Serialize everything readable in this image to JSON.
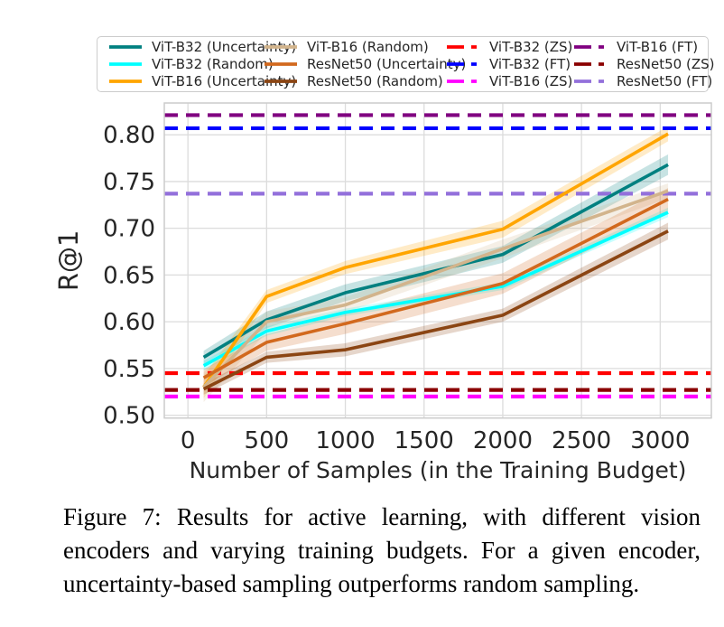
{
  "figure": {
    "caption": {
      "lines": [
        "Figure 7: Results for active learning, with different vision",
        "encoders and varying training budgets. For a given encoder,",
        "uncertainty-based sampling outperforms random sampling."
      ]
    }
  },
  "chart_data": {
    "type": "line",
    "title": "",
    "xlabel": "Number of Samples (in the Training Budget)",
    "ylabel": "R@1",
    "x": [
      100,
      500,
      1000,
      2000,
      3050
    ],
    "xlim": [
      -150,
      3325
    ],
    "ylim": [
      0.497,
      0.834
    ],
    "xticks": [
      0,
      500,
      1000,
      1500,
      2000,
      2500,
      3000
    ],
    "yticks": [
      0.5,
      0.55,
      0.6,
      0.65,
      0.7,
      0.75,
      0.8
    ],
    "grid": true,
    "grid_color": "#dcdcdc",
    "spine_color": "#cccccc",
    "tick_color": "#262626",
    "series": [
      {
        "name": "ViT-B32 (Uncertainty)",
        "color": "#008080",
        "values": [
          0.562,
          0.602,
          0.631,
          0.672,
          0.768
        ],
        "ci_halfwidth": [
          0.007,
          0.009,
          0.009,
          0.009,
          0.011
        ]
      },
      {
        "name": "ViT-B32 (Random)",
        "color": "#00FFFF",
        "values": [
          0.553,
          0.59,
          0.61,
          0.638,
          0.717
        ],
        "ci_halfwidth": [
          0.005,
          0.005,
          0.004,
          0.004,
          0.005
        ]
      },
      {
        "name": "ViT-B16 (Uncertainty)",
        "color": "#FFA500",
        "values": [
          0.53,
          0.627,
          0.658,
          0.699,
          0.801
        ],
        "ci_halfwidth": [
          0.012,
          0.007,
          0.007,
          0.009,
          0.008
        ]
      },
      {
        "name": "ViT-B16 (Random)",
        "color": "#D2B48C",
        "values": [
          0.53,
          0.6,
          0.618,
          0.678,
          0.74
        ],
        "ci_halfwidth": [
          0.016,
          0.011,
          0.008,
          0.01,
          0.008
        ]
      },
      {
        "name": "ResNet50 (Uncertainty)",
        "color": "#D2691E",
        "values": [
          0.54,
          0.578,
          0.598,
          0.641,
          0.731
        ],
        "ci_halfwidth": [
          0.009,
          0.009,
          0.011,
          0.011,
          0.012
        ]
      },
      {
        "name": "ResNet50 (Random)",
        "color": "#8B4513",
        "values": [
          0.528,
          0.562,
          0.57,
          0.607,
          0.697
        ],
        "ci_halfwidth": [
          0.006,
          0.006,
          0.007,
          0.007,
          0.009
        ]
      }
    ],
    "hlines": [
      {
        "name": "ViT-B32 (ZS)",
        "color": "#FF0000",
        "value": 0.545
      },
      {
        "name": "ViT-B32 (FT)",
        "color": "#0000FF",
        "value": 0.807
      },
      {
        "name": "ViT-B16 (ZS)",
        "color": "#FF00FF",
        "value": 0.52
      },
      {
        "name": "ViT-B16 (FT)",
        "color": "#800080",
        "value": 0.821
      },
      {
        "name": "ResNet50 (ZS)",
        "color": "#8B0000",
        "value": 0.527
      },
      {
        "name": "ResNet50 (FT)",
        "color": "#9370DB",
        "value": 0.737
      }
    ],
    "legend": {
      "position": "top",
      "columns": [
        [
          {
            "label": "ViT-B32 (Uncertainty)",
            "color": "#008080",
            "dashed": false
          },
          {
            "label": "ViT-B32 (Random)",
            "color": "#00FFFF",
            "dashed": false
          },
          {
            "label": "ViT-B16 (Uncertainty)",
            "color": "#FFA500",
            "dashed": false
          }
        ],
        [
          {
            "label": "ViT-B16 (Random)",
            "color": "#D2B48C",
            "dashed": false
          },
          {
            "label": "ResNet50 (Uncertainty)",
            "color": "#D2691E",
            "dashed": false
          },
          {
            "label": "ResNet50 (Random)",
            "color": "#8B4513",
            "dashed": false
          }
        ],
        [
          {
            "label": "ViT-B32 (ZS)",
            "color": "#FF0000",
            "dashed": true
          },
          {
            "label": "ViT-B32 (FT)",
            "color": "#0000FF",
            "dashed": true
          },
          {
            "label": "ViT-B16 (ZS)",
            "color": "#FF00FF",
            "dashed": true
          }
        ],
        [
          {
            "label": "ViT-B16 (FT)",
            "color": "#800080",
            "dashed": true
          },
          {
            "label": "ResNet50 (ZS)",
            "color": "#8B0000",
            "dashed": true
          },
          {
            "label": "ResNet50 (FT)",
            "color": "#9370DB",
            "dashed": true
          }
        ]
      ]
    }
  }
}
